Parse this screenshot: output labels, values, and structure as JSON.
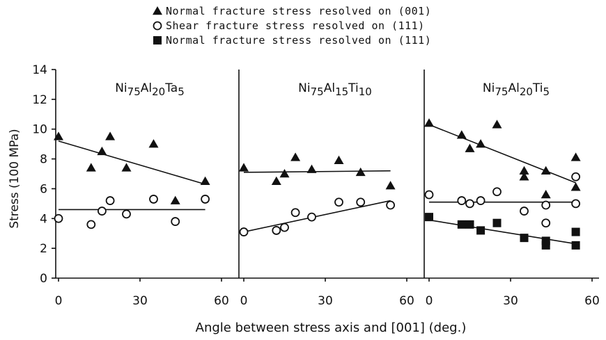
{
  "chart_data": {
    "type": "scatter",
    "legend_position": "top-center",
    "legend": [
      {
        "marker": "filled-triangle",
        "label": "Normal fracture stress resolved on (001)"
      },
      {
        "marker": "open-circle",
        "label": "Shear fracture stress resolved on (111)"
      },
      {
        "marker": "filled-square",
        "label": "Normal fracture stress resolved on (111)"
      }
    ],
    "ylabel": "Stress (100 MPa)",
    "xlabel": "Angle between stress axis and [001] (deg.)",
    "ylim": [
      0,
      14
    ],
    "yticks": [
      0,
      2,
      4,
      6,
      8,
      10,
      12,
      14
    ],
    "xlim": [
      0,
      60
    ],
    "xticks": [
      0,
      30,
      60
    ],
    "panels": [
      {
        "title_parts": [
          [
            "Ni",
            ""
          ],
          [
            "75",
            "sub"
          ],
          [
            "Al",
            ""
          ],
          [
            "20",
            "sub"
          ],
          [
            "Ta",
            ""
          ],
          [
            "5",
            "sub"
          ]
        ],
        "series": [
          {
            "marker": "filled-triangle",
            "points": [
              [
                0,
                9.5
              ],
              [
                12,
                7.4
              ],
              [
                16,
                8.5
              ],
              [
                19,
                9.5
              ],
              [
                25,
                7.4
              ],
              [
                35,
                9.0
              ],
              [
                43,
                5.2
              ],
              [
                54,
                6.5
              ]
            ],
            "fit": [
              [
                0,
                9.2
              ],
              [
                54,
                6.3
              ]
            ]
          },
          {
            "marker": "open-circle",
            "points": [
              [
                0,
                4.0
              ],
              [
                12,
                3.6
              ],
              [
                16,
                4.5
              ],
              [
                19,
                5.2
              ],
              [
                25,
                4.3
              ],
              [
                35,
                5.3
              ],
              [
                43,
                3.8
              ],
              [
                54,
                5.3
              ]
            ],
            "fit": [
              [
                0,
                4.6
              ],
              [
                54,
                4.6
              ]
            ]
          }
        ]
      },
      {
        "title_parts": [
          [
            "Ni",
            ""
          ],
          [
            "75",
            "sub"
          ],
          [
            "Al",
            ""
          ],
          [
            "15",
            "sub"
          ],
          [
            "Ti",
            ""
          ],
          [
            "10",
            "sub"
          ]
        ],
        "series": [
          {
            "marker": "filled-triangle",
            "points": [
              [
                0,
                7.4
              ],
              [
                12,
                6.5
              ],
              [
                15,
                7.0
              ],
              [
                19,
                8.1
              ],
              [
                25,
                7.3
              ],
              [
                35,
                7.9
              ],
              [
                43,
                7.1
              ],
              [
                54,
                6.2
              ]
            ],
            "fit": [
              [
                0,
                7.1
              ],
              [
                54,
                7.2
              ]
            ]
          },
          {
            "marker": "open-circle",
            "points": [
              [
                0,
                3.1
              ],
              [
                12,
                3.2
              ],
              [
                15,
                3.4
              ],
              [
                19,
                4.4
              ],
              [
                25,
                4.1
              ],
              [
                35,
                5.1
              ],
              [
                43,
                5.1
              ],
              [
                54,
                4.9
              ]
            ],
            "fit": [
              [
                0,
                3.1
              ],
              [
                54,
                5.2
              ]
            ]
          }
        ]
      },
      {
        "title_parts": [
          [
            "Ni",
            ""
          ],
          [
            "75",
            "sub"
          ],
          [
            "Al",
            ""
          ],
          [
            "20",
            "sub"
          ],
          [
            "Ti",
            ""
          ],
          [
            "5",
            "sub"
          ]
        ],
        "series": [
          {
            "marker": "filled-triangle",
            "points": [
              [
                0,
                10.4
              ],
              [
                12,
                9.6
              ],
              [
                15,
                8.7
              ],
              [
                19,
                9.0
              ],
              [
                25,
                10.3
              ],
              [
                35,
                7.2
              ],
              [
                35,
                6.8
              ],
              [
                43,
                7.2
              ],
              [
                43,
                5.6
              ],
              [
                54,
                8.1
              ],
              [
                54,
                6.1
              ]
            ],
            "fit": [
              [
                0,
                10.3
              ],
              [
                54,
                6.4
              ]
            ]
          },
          {
            "marker": "open-circle",
            "points": [
              [
                0,
                5.6
              ],
              [
                12,
                5.2
              ],
              [
                15,
                5.0
              ],
              [
                19,
                5.2
              ],
              [
                25,
                5.8
              ],
              [
                35,
                4.5
              ],
              [
                43,
                4.9
              ],
              [
                43,
                3.7
              ],
              [
                54,
                6.8
              ],
              [
                54,
                5.0
              ]
            ],
            "fit": [
              [
                0,
                5.1
              ],
              [
                54,
                5.1
              ]
            ]
          },
          {
            "marker": "filled-square",
            "points": [
              [
                0,
                4.1
              ],
              [
                12,
                3.6
              ],
              [
                15,
                3.6
              ],
              [
                19,
                3.2
              ],
              [
                25,
                3.7
              ],
              [
                35,
                2.7
              ],
              [
                43,
                2.5
              ],
              [
                43,
                2.2
              ],
              [
                54,
                3.1
              ],
              [
                54,
                2.2
              ]
            ],
            "fit": [
              [
                0,
                3.9
              ],
              [
                54,
                2.3
              ]
            ]
          }
        ]
      }
    ]
  }
}
